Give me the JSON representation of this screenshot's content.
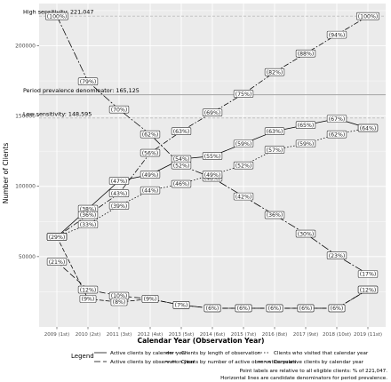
{
  "chart_data": {
    "type": "line",
    "xlabel": "Calendar Year (Observation Year)",
    "ylabel": "Number of Clients",
    "categories": [
      "2009 (1st)",
      "2010 (2st)",
      "2011 (3st)",
      "2012 (4st)",
      "2013 (5st)",
      "2014 (6st)",
      "2015 (7st)",
      "2016 (8st)",
      "2017 (9st)",
      "2018 (10st)",
      "2019 (11st)"
    ],
    "y_ticks": [
      50000,
      100000,
      150000,
      200000
    ],
    "y_tick_labels": [
      "50000",
      "100000",
      "150000",
      "200000"
    ],
    "ylim": [
      0,
      230000
    ],
    "grid": true,
    "background": "#ebebeb",
    "reference_lines": [
      {
        "label": "High sensitivity: 221,047",
        "value": 221047
      },
      {
        "label": "Period prevalence denominator: 165,125",
        "value": 165125
      },
      {
        "label": "Low sensitivity: 148,595",
        "value": 148595
      }
    ],
    "series": [
      {
        "name": "Active clients by calendar year",
        "dash": "",
        "values": [
          64100,
          84000,
          103900,
          108300,
          119400,
          121600,
          130400,
          139200,
          143600,
          148100,
          141500
        ],
        "labels": [
          "(29%)",
          "(38%)",
          "(47%)",
          "(49%)",
          "(54%)",
          "(55%)",
          "(59%)",
          "(63%)",
          "(65%)",
          "(67%)",
          "(64%)"
        ]
      },
      {
        "name": "Active clients by observation year",
        "dash": "7,3",
        "values": [
          46400,
          26500,
          22100,
          19900,
          15500,
          13300,
          13300,
          13300,
          13300,
          13300,
          26500
        ],
        "labels": [
          "(21%)",
          "(12%)",
          "(10%)",
          "(9%)",
          "(7%)",
          "(6%)",
          "(6%)",
          "(6%)",
          "(6%)",
          "(6%)",
          "(12%)"
        ]
      },
      {
        "name": "Clients by length of observation",
        "dash": "9,2,2,2",
        "values": [
          221047,
          174600,
          154700,
          137000,
          114900,
          106100,
          92800,
          79600,
          66300,
          50800,
          37600
        ],
        "labels": [
          "(100%)",
          "(79%)",
          "(70%)",
          "(62%)",
          "(52%)",
          "(48%)",
          "(42%)",
          "(36%)",
          "(30%)",
          "(23%)",
          "(17%)"
        ]
      },
      {
        "name": "Clients by number of active observation years",
        "dash": "5,2",
        "values": [
          64100,
          19900,
          17700,
          19900,
          15500,
          13300,
          13300,
          13300,
          13300,
          13300,
          26500
        ],
        "labels": [
          "(29%)",
          "(9%)",
          "(8%)",
          "(9%)",
          "(7%)",
          "(6%)",
          "(6%)",
          "(6%)",
          "(6%)",
          "(6%)",
          "(12%)"
        ]
      },
      {
        "name": "Clients who visited that calendar year",
        "dash": "1.5,2",
        "values": [
          64100,
          72900,
          86200,
          97200,
          101700,
          108300,
          114900,
          126000,
          130400,
          137000,
          141500
        ],
        "labels": [
          "(29%)",
          "(33%)",
          "(39%)",
          "(44%)",
          "(46%)",
          "(49%)",
          "(52%)",
          "(57%)",
          "(59%)",
          "(62%)",
          "(64%)"
        ]
      },
      {
        "name": "Cumulative clients by calendar year",
        "dash": "6,2,1.5,2",
        "values": [
          64100,
          79600,
          95000,
          123800,
          139200,
          152500,
          165800,
          181200,
          194500,
          207800,
          221047
        ],
        "labels": [
          "(29%)",
          "(36%)",
          "(43%)",
          "(56%)",
          "(63%)",
          "(69%)",
          "(75%)",
          "(82%)",
          "(88%)",
          "(94%)",
          "(100%)"
        ]
      }
    ],
    "legend": {
      "title": "Legend",
      "placement": "bottom",
      "columns": 3
    },
    "footnote": [
      "Point labels are relative to all eligible clients: % of 221,047.",
      "Horizontal lines are candidate denominators for period prevalence."
    ]
  }
}
